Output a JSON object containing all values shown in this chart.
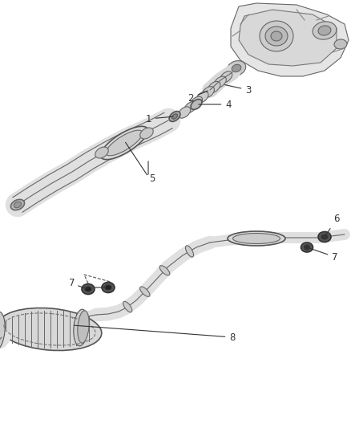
{
  "bg_color": "#ffffff",
  "line_color": "#333333",
  "label_color": "#333333",
  "fig_width": 4.38,
  "fig_height": 5.33,
  "dpi": 100,
  "font_size": 8.5,
  "upper": {
    "pipe_color": "#e0e0e0",
    "pipe_edge": "#555555",
    "cat_color": "#d8d8d8",
    "engine_color": "#cccccc",
    "flex_color": "#aaaaaa"
  },
  "lower": {
    "pipe_color": "#e0e0e0",
    "pipe_edge": "#555555",
    "muffler_color": "#d0d0d0",
    "hanger_color": "#444444"
  }
}
